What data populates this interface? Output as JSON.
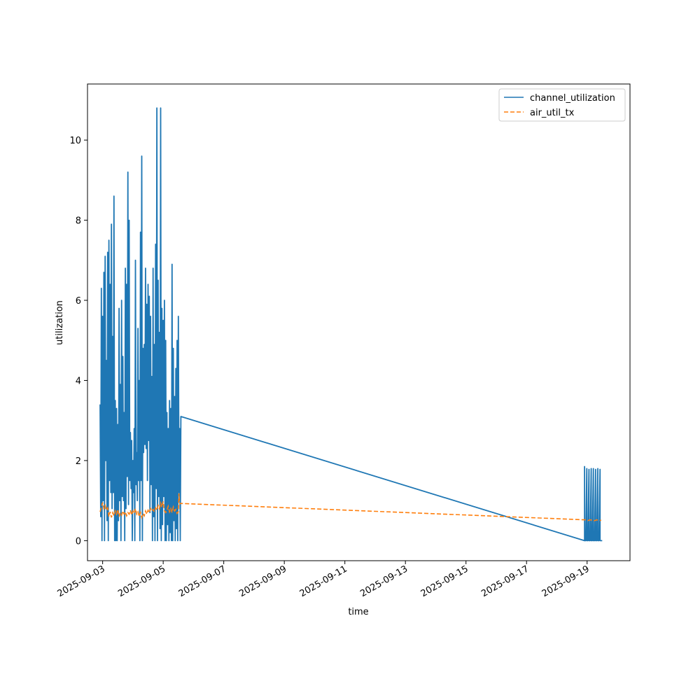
{
  "chart_data": {
    "type": "line",
    "title": "",
    "xlabel": "time",
    "ylabel": "utilization",
    "xlim": [
      "2025-09-02T12:00",
      "2025-09-20T10:00"
    ],
    "ylim": [
      -0.5,
      11.4
    ],
    "x_ticks": [
      "2025-09-03",
      "2025-09-05",
      "2025-09-07",
      "2025-09-09",
      "2025-09-11",
      "2025-09-13",
      "2025-09-15",
      "2025-09-17",
      "2025-09-19"
    ],
    "y_ticks": [
      0,
      2,
      4,
      6,
      8,
      10
    ],
    "grid": false,
    "legend_position": "top-right",
    "series": [
      {
        "name": "channel_utilization",
        "color": "#1f77b4",
        "style": "solid",
        "points": [
          [
            "2025-09-02T22:00",
            3.4
          ],
          [
            "2025-09-02T22:30",
            0.6
          ],
          [
            "2025-09-02T23:00",
            6.3
          ],
          [
            "2025-09-02T23:30",
            0.0
          ],
          [
            "2025-09-03T00:00",
            5.6
          ],
          [
            "2025-09-03T00:30",
            1.0
          ],
          [
            "2025-09-03T01:00",
            6.7
          ],
          [
            "2025-09-03T01:30",
            0.0
          ],
          [
            "2025-09-03T02:00",
            7.1
          ],
          [
            "2025-09-03T02:30",
            2.0
          ],
          [
            "2025-09-03T03:00",
            4.5
          ],
          [
            "2025-09-03T03:30",
            0.5
          ],
          [
            "2025-09-03T04:00",
            7.2
          ],
          [
            "2025-09-03T04:30",
            0.0
          ],
          [
            "2025-09-03T05:00",
            7.5
          ],
          [
            "2025-09-03T05:30",
            1.5
          ],
          [
            "2025-09-03T06:00",
            6.4
          ],
          [
            "2025-09-03T06:30",
            1.2
          ],
          [
            "2025-09-03T07:00",
            7.9
          ],
          [
            "2025-09-03T07:30",
            0.8
          ],
          [
            "2025-09-03T08:00",
            5.1
          ],
          [
            "2025-09-03T08:30",
            1.2
          ],
          [
            "2025-09-03T09:00",
            8.6
          ],
          [
            "2025-09-03T09:30",
            0.0
          ],
          [
            "2025-09-03T10:00",
            3.5
          ],
          [
            "2025-09-03T10:30",
            0.0
          ],
          [
            "2025-09-03T11:00",
            3.3
          ],
          [
            "2025-09-03T11:30",
            0.0
          ],
          [
            "2025-09-03T12:00",
            2.9
          ],
          [
            "2025-09-03T12:30",
            0.5
          ],
          [
            "2025-09-03T13:00",
            5.8
          ],
          [
            "2025-09-03T13:30",
            1.0
          ],
          [
            "2025-09-03T14:00",
            3.9
          ],
          [
            "2025-09-03T14:30",
            0.0
          ],
          [
            "2025-09-03T15:00",
            6.0
          ],
          [
            "2025-09-03T15:30",
            1.1
          ],
          [
            "2025-09-03T16:00",
            4.6
          ],
          [
            "2025-09-03T16:30",
            1.0
          ],
          [
            "2025-09-03T17:00",
            3.2
          ],
          [
            "2025-09-03T17:30",
            0.0
          ],
          [
            "2025-09-03T18:00",
            6.8
          ],
          [
            "2025-09-03T18:30",
            0.8
          ],
          [
            "2025-09-03T19:00",
            6.4
          ],
          [
            "2025-09-03T19:30",
            1.6
          ],
          [
            "2025-09-03T20:00",
            9.2
          ],
          [
            "2025-09-03T20:30",
            0.9
          ],
          [
            "2025-09-03T21:00",
            8.0
          ],
          [
            "2025-09-03T21:30",
            1.5
          ],
          [
            "2025-09-03T22:00",
            2.7
          ],
          [
            "2025-09-03T22:30",
            1.3
          ],
          [
            "2025-09-03T23:00",
            2.5
          ],
          [
            "2025-09-03T23:30",
            0.0
          ],
          [
            "2025-09-04T00:00",
            2.0
          ],
          [
            "2025-09-04T00:30",
            1.2
          ],
          [
            "2025-09-04T01:00",
            2.8
          ],
          [
            "2025-09-04T01:30",
            0.0
          ],
          [
            "2025-09-04T02:00",
            7.0
          ],
          [
            "2025-09-04T02:30",
            1.4
          ],
          [
            "2025-09-04T03:00",
            2.2
          ],
          [
            "2025-09-04T03:30",
            1.0
          ],
          [
            "2025-09-04T04:00",
            5.3
          ],
          [
            "2025-09-04T04:30",
            1.5
          ],
          [
            "2025-09-04T05:00",
            4.0
          ],
          [
            "2025-09-04T05:30",
            0.0
          ],
          [
            "2025-09-04T06:00",
            7.7
          ],
          [
            "2025-09-04T06:30",
            1.5
          ],
          [
            "2025-09-04T07:00",
            9.6
          ],
          [
            "2025-09-04T07:30",
            0.0
          ],
          [
            "2025-09-04T08:00",
            4.8
          ],
          [
            "2025-09-04T08:30",
            2.2
          ],
          [
            "2025-09-04T09:00",
            4.9
          ],
          [
            "2025-09-04T09:30",
            2.4
          ],
          [
            "2025-09-04T10:00",
            6.8
          ],
          [
            "2025-09-04T10:30",
            2.3
          ],
          [
            "2025-09-04T11:00",
            5.9
          ],
          [
            "2025-09-04T11:30",
            1.5
          ],
          [
            "2025-09-04T12:00",
            6.4
          ],
          [
            "2025-09-04T12:30",
            2.5
          ],
          [
            "2025-09-04T13:00",
            6.1
          ],
          [
            "2025-09-04T13:30",
            0.7
          ],
          [
            "2025-09-04T14:00",
            5.6
          ],
          [
            "2025-09-04T14:30",
            1.4
          ],
          [
            "2025-09-04T15:00",
            4.1
          ],
          [
            "2025-09-04T15:30",
            0.0
          ],
          [
            "2025-09-04T16:00",
            6.8
          ],
          [
            "2025-09-04T16:30",
            0.6
          ],
          [
            "2025-09-04T17:00",
            4.9
          ],
          [
            "2025-09-04T17:30",
            0.0
          ],
          [
            "2025-09-04T18:00",
            7.4
          ],
          [
            "2025-09-04T18:30",
            1.3
          ],
          [
            "2025-09-04T19:00",
            10.8
          ],
          [
            "2025-09-04T19:30",
            0.0
          ],
          [
            "2025-09-04T20:00",
            6.5
          ],
          [
            "2025-09-04T20:30",
            1.1
          ],
          [
            "2025-09-04T21:00",
            5.2
          ],
          [
            "2025-09-04T21:30",
            0.3
          ],
          [
            "2025-09-04T22:00",
            10.8
          ],
          [
            "2025-09-04T22:30",
            0.0
          ],
          [
            "2025-09-04T23:00",
            5.8
          ],
          [
            "2025-09-04T23:30",
            0.4
          ],
          [
            "2025-09-05T00:00",
            5.5
          ],
          [
            "2025-09-05T00:30",
            1.1
          ],
          [
            "2025-09-05T01:00",
            6.0
          ],
          [
            "2025-09-05T01:30",
            0.0
          ],
          [
            "2025-09-05T02:00",
            5.0
          ],
          [
            "2025-09-05T02:30",
            0.0
          ],
          [
            "2025-09-05T03:00",
            3.2
          ],
          [
            "2025-09-05T03:30",
            0.4
          ],
          [
            "2025-09-05T04:00",
            2.8
          ],
          [
            "2025-09-05T04:30",
            0.0
          ],
          [
            "2025-09-05T05:00",
            3.5
          ],
          [
            "2025-09-05T05:30",
            0.2
          ],
          [
            "2025-09-05T06:00",
            3.3
          ],
          [
            "2025-09-05T06:30",
            0.0
          ],
          [
            "2025-09-05T07:00",
            6.9
          ],
          [
            "2025-09-05T07:30",
            0.0
          ],
          [
            "2025-09-05T08:00",
            4.8
          ],
          [
            "2025-09-05T08:30",
            0.5
          ],
          [
            "2025-09-05T09:00",
            3.6
          ],
          [
            "2025-09-05T09:30",
            0.0
          ],
          [
            "2025-09-05T10:00",
            4.3
          ],
          [
            "2025-09-05T10:30",
            0.3
          ],
          [
            "2025-09-05T11:00",
            5.0
          ],
          [
            "2025-09-05T11:30",
            0.0
          ],
          [
            "2025-09-05T12:00",
            5.6
          ],
          [
            "2025-09-05T12:30",
            1.2
          ],
          [
            "2025-09-05T13:00",
            2.8
          ],
          [
            "2025-09-05T13:30",
            0.0
          ],
          [
            "2025-09-05T14:00",
            3.1
          ]
        ]
      },
      {
        "name": "air_util_tx",
        "color": "#ff7f0e",
        "style": "dashed",
        "points": [
          [
            "2025-09-02T22:00",
            0.72
          ],
          [
            "2025-09-03T00:00",
            0.95
          ],
          [
            "2025-09-03T01:00",
            0.8
          ],
          [
            "2025-09-03T02:00",
            0.88
          ],
          [
            "2025-09-03T03:00",
            0.76
          ],
          [
            "2025-09-03T04:00",
            0.82
          ],
          [
            "2025-09-03T05:00",
            0.6
          ],
          [
            "2025-09-03T06:00",
            0.72
          ],
          [
            "2025-09-03T07:00",
            0.58
          ],
          [
            "2025-09-03T08:00",
            0.7
          ],
          [
            "2025-09-03T09:00",
            0.62
          ],
          [
            "2025-09-03T10:00",
            0.74
          ],
          [
            "2025-09-03T11:00",
            0.66
          ],
          [
            "2025-09-03T12:00",
            0.78
          ],
          [
            "2025-09-03T13:00",
            0.6
          ],
          [
            "2025-09-03T14:00",
            0.7
          ],
          [
            "2025-09-03T15:00",
            0.64
          ],
          [
            "2025-09-03T16:00",
            0.74
          ],
          [
            "2025-09-03T17:00",
            0.66
          ],
          [
            "2025-09-03T18:00",
            0.72
          ],
          [
            "2025-09-03T19:00",
            0.62
          ],
          [
            "2025-09-03T20:00",
            0.7
          ],
          [
            "2025-09-03T21:00",
            0.66
          ],
          [
            "2025-09-03T22:00",
            0.76
          ],
          [
            "2025-09-03T23:00",
            0.64
          ],
          [
            "2025-09-04T00:00",
            0.74
          ],
          [
            "2025-09-04T01:00",
            0.68
          ],
          [
            "2025-09-04T02:00",
            0.8
          ],
          [
            "2025-09-04T03:00",
            0.66
          ],
          [
            "2025-09-04T04:00",
            0.72
          ],
          [
            "2025-09-04T05:00",
            0.6
          ],
          [
            "2025-09-04T06:00",
            0.7
          ],
          [
            "2025-09-04T07:00",
            0.58
          ],
          [
            "2025-09-04T08:00",
            0.68
          ],
          [
            "2025-09-04T09:00",
            0.62
          ],
          [
            "2025-09-04T10:00",
            0.74
          ],
          [
            "2025-09-04T11:00",
            0.66
          ],
          [
            "2025-09-04T12:00",
            0.76
          ],
          [
            "2025-09-04T13:00",
            0.7
          ],
          [
            "2025-09-04T14:00",
            0.8
          ],
          [
            "2025-09-04T15:00",
            0.74
          ],
          [
            "2025-09-04T16:00",
            0.78
          ],
          [
            "2025-09-04T17:00",
            0.72
          ],
          [
            "2025-09-04T18:00",
            0.82
          ],
          [
            "2025-09-04T19:00",
            0.76
          ],
          [
            "2025-09-04T20:00",
            0.88
          ],
          [
            "2025-09-04T21:00",
            0.8
          ],
          [
            "2025-09-04T22:00",
            0.94
          ],
          [
            "2025-09-04T23:00",
            0.84
          ],
          [
            "2025-09-05T00:00",
            0.98
          ],
          [
            "2025-09-05T01:00",
            0.74
          ],
          [
            "2025-09-05T02:00",
            0.7
          ],
          [
            "2025-09-05T03:00",
            0.76
          ],
          [
            "2025-09-05T04:00",
            0.86
          ],
          [
            "2025-09-05T05:00",
            0.72
          ],
          [
            "2025-09-05T06:00",
            0.8
          ],
          [
            "2025-09-05T07:00",
            0.7
          ],
          [
            "2025-09-05T08:00",
            0.84
          ],
          [
            "2025-09-05T09:00",
            0.74
          ],
          [
            "2025-09-05T10:00",
            0.78
          ],
          [
            "2025-09-05T11:00",
            0.68
          ],
          [
            "2025-09-05T12:00",
            0.72
          ],
          [
            "2025-09-05T12:30",
            1.18
          ],
          [
            "2025-09-05T13:00",
            0.92
          ],
          [
            "2025-09-05T14:00",
            0.93
          ]
        ]
      }
    ],
    "gap_segment": {
      "end_time": "2025-09-18T22:00",
      "channel_utilization_end": 0.0,
      "air_util_tx_end": 0.52
    },
    "late_cluster": {
      "start": "2025-09-18T22:00",
      "end": "2025-09-19T12:00",
      "channel_peaks": [
        1.85,
        1.8,
        1.78,
        1.8,
        1.8,
        1.78,
        1.8,
        1.78
      ],
      "air_values": [
        0.52,
        0.5,
        0.52,
        0.51,
        0.5,
        0.52,
        0.5,
        0.51
      ]
    },
    "legend": [
      {
        "label": "channel_utilization",
        "color": "#1f77b4",
        "style": "solid"
      },
      {
        "label": "air_util_tx",
        "color": "#ff7f0e",
        "style": "dashed"
      }
    ]
  }
}
